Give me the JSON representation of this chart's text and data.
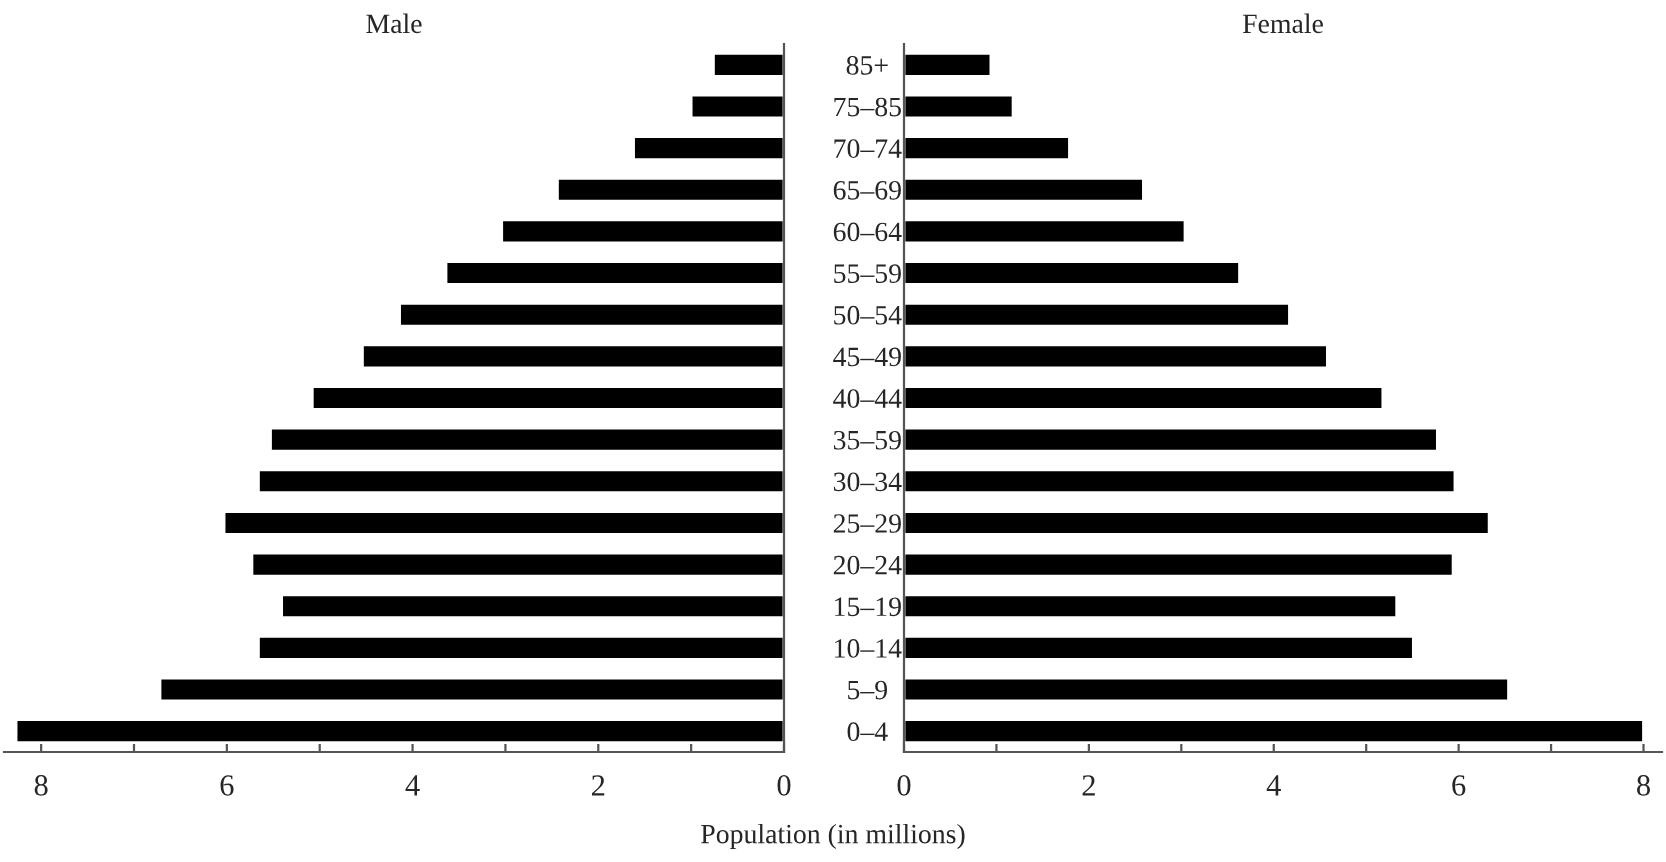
{
  "chart_data": [
    {
      "type": "bar",
      "orientation": "horizontal",
      "title": "Male",
      "xlabel": "Population (in millions)",
      "categories": [
        "85+",
        "75–85",
        "70–74",
        "65–69",
        "60–64",
        "55–59",
        "50–54",
        "45–49",
        "40–44",
        "35–59",
        "30–34",
        "25–29",
        "20–24",
        "15–19",
        "10–14",
        "5–9",
        "0–4"
      ],
      "series": [
        {
          "color": "#000000",
          "values": [
            0.76,
            1.0,
            1.62,
            2.44,
            3.04,
            3.64,
            4.14,
            4.54,
            5.08,
            5.53,
            5.66,
            6.03,
            5.73,
            5.41,
            5.66,
            6.72,
            8.27
          ]
        }
      ],
      "xlim": [
        8.4,
        0
      ],
      "xticks": [
        8,
        {
          "value": 7,
          "label": null
        },
        6,
        {
          "value": 5,
          "label": null
        },
        4,
        {
          "value": 3,
          "label": null
        },
        2,
        {
          "value": 1,
          "label": null
        },
        0
      ],
      "grid": false,
      "legend": false
    },
    {
      "type": "bar",
      "orientation": "horizontal",
      "title": "Female",
      "tick_labels": "x",
      "categories": [
        null,
        null,
        null,
        null,
        null,
        null,
        null,
        null,
        null,
        null,
        null,
        null,
        null,
        null,
        null,
        null,
        null
      ],
      "series": [
        {
          "color": "#000000",
          "values": [
            0.94,
            1.18,
            1.79,
            2.59,
            3.04,
            3.63,
            4.17,
            4.58,
            5.18,
            5.77,
            5.96,
            6.33,
            5.94,
            5.33,
            5.51,
            6.54,
            8.0
          ]
        }
      ],
      "xlim": [
        0,
        8.2
      ],
      "xticks": [
        0,
        {
          "value": 1,
          "label": null
        },
        2,
        {
          "value": 3,
          "label": null
        },
        4,
        {
          "value": 5,
          "label": null
        },
        6,
        {
          "value": 7,
          "label": null
        },
        8
      ],
      "grid": false,
      "legend": false
    }
  ]
}
